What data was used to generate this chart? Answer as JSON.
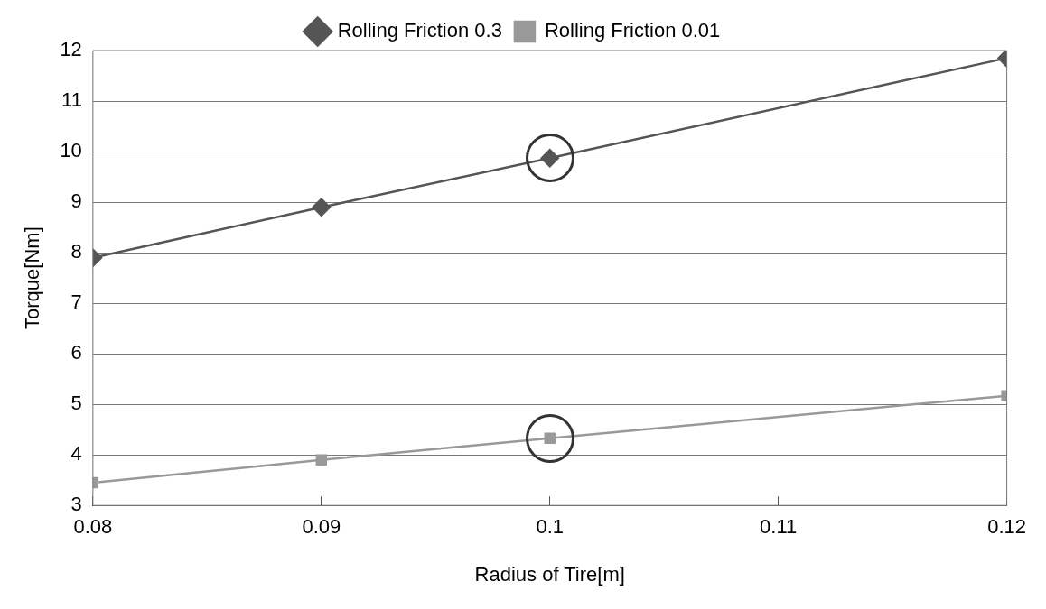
{
  "chart_data": {
    "type": "line",
    "xlabel": "Radius of Tire[m]",
    "ylabel": "Torque[Nm]",
    "x": [
      0.08,
      0.09,
      0.1,
      0.12
    ],
    "series": [
      {
        "name": "Rolling Friction 0.3",
        "color": "#555555",
        "marker": "diamond",
        "values": [
          7.9,
          8.9,
          9.87,
          11.85
        ]
      },
      {
        "name": "Rolling Friction 0.01",
        "color": "#999999",
        "marker": "square",
        "values": [
          3.45,
          3.9,
          4.33,
          5.17
        ]
      }
    ],
    "xlim": [
      0.08,
      0.12
    ],
    "xticks": [
      0.08,
      0.09,
      0.1,
      0.11,
      0.12
    ],
    "ylim": [
      3,
      12
    ],
    "yticks": [
      3,
      4,
      5,
      6,
      7,
      8,
      9,
      10,
      11,
      12
    ],
    "grid": "y",
    "legend": "top"
  }
}
